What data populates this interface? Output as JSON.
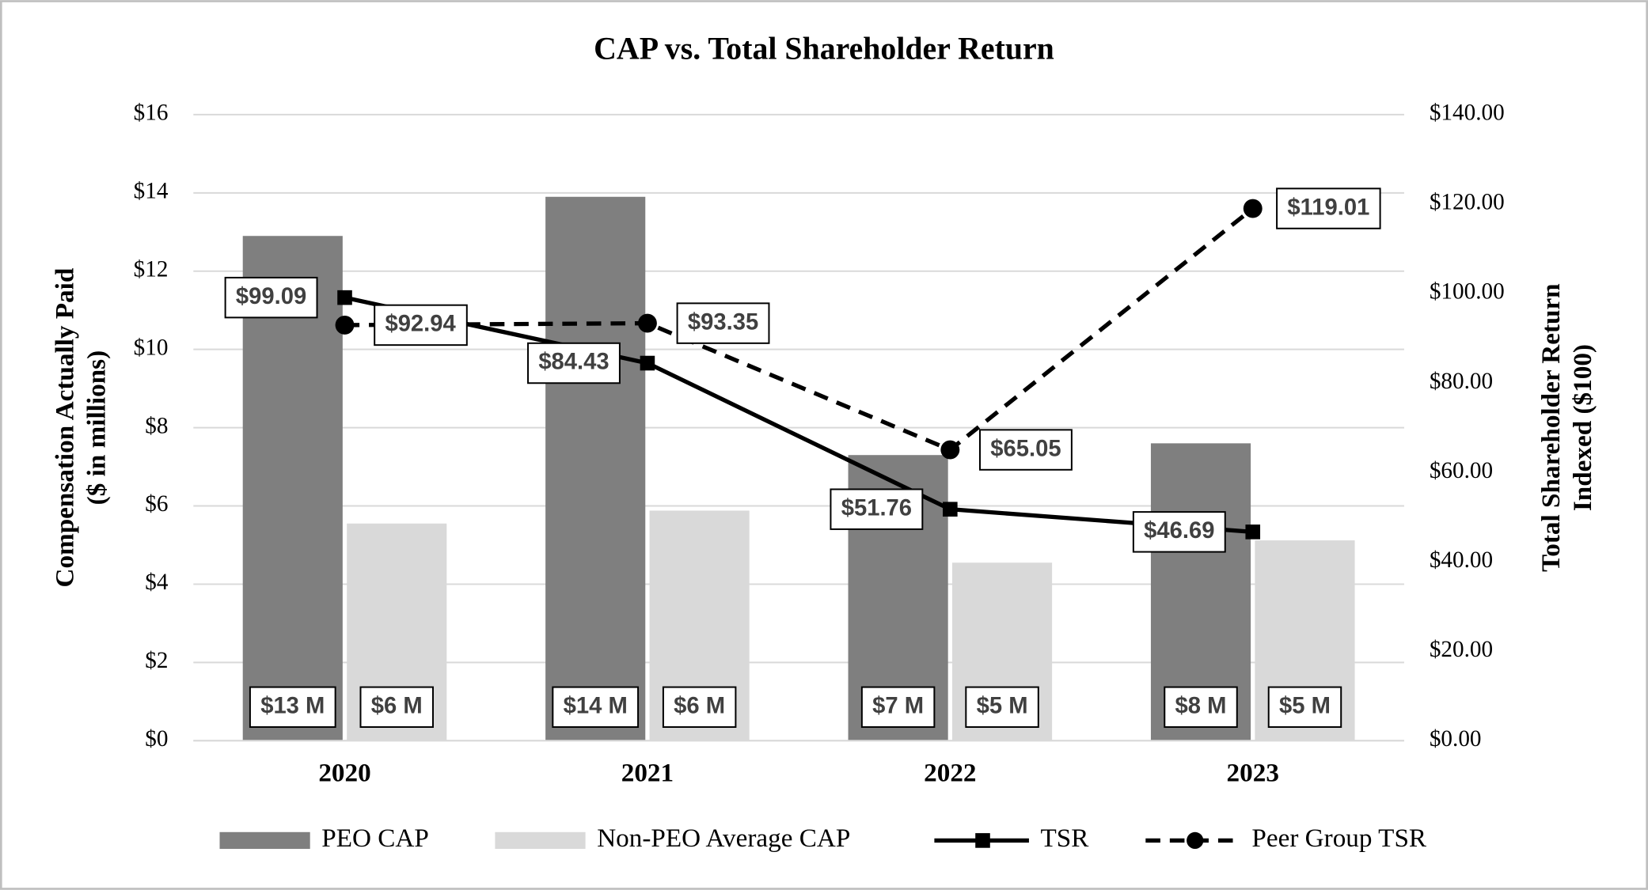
{
  "chart_data": {
    "type": "bar-line",
    "title": "CAP vs. Total Shareholder Return",
    "y_label": [
      "Compensation Actually Paid",
      "($ in millions)"
    ],
    "y2_label": [
      "Total Shareholder Return",
      "Indexed ($100)"
    ],
    "categories": [
      "2020",
      "2021",
      "2022",
      "2023"
    ],
    "ylim": [
      0,
      16
    ],
    "yticks": [
      {
        "value": 0,
        "label": "$0"
      },
      {
        "value": 2,
        "label": "$2"
      },
      {
        "value": 4,
        "label": "$4"
      },
      {
        "value": 6,
        "label": "$6"
      },
      {
        "value": 8,
        "label": "$8"
      },
      {
        "value": 10,
        "label": "$10"
      },
      {
        "value": 12,
        "label": "$12"
      },
      {
        "value": 14,
        "label": "$14"
      },
      {
        "value": 16,
        "label": "$16"
      }
    ],
    "y2lim": [
      0,
      140
    ],
    "y2ticks": [
      {
        "value": 0,
        "label": "$0.00"
      },
      {
        "value": 20,
        "label": "$20.00"
      },
      {
        "value": 40,
        "label": "$40.00"
      },
      {
        "value": 60,
        "label": "$60.00"
      },
      {
        "value": 80,
        "label": "$80.00"
      },
      {
        "value": 100,
        "label": "$100.00"
      },
      {
        "value": 120,
        "label": "$120.00"
      },
      {
        "value": 140,
        "label": "$140.00"
      }
    ],
    "grid": true,
    "series": [
      {
        "name": "PEO CAP",
        "kind": "bar",
        "color": "#7f7f7f",
        "values": [
          12.9,
          13.9,
          7.3,
          7.6
        ],
        "value_labels": [
          "$13 M",
          "$14 M",
          "$7 M",
          "$8 M"
        ]
      },
      {
        "name": "Non-PEO Average CAP",
        "kind": "bar",
        "color": "#d9d9d9",
        "values": [
          5.55,
          5.88,
          4.55,
          5.12
        ],
        "value_labels": [
          "$6 M",
          "$6 M",
          "$5 M",
          "$5 M"
        ]
      },
      {
        "name": "TSR",
        "kind": "line",
        "axis": "y2",
        "color": "#000000",
        "marker": "square",
        "dashed": false,
        "values": [
          99.09,
          84.43,
          51.76,
          46.69
        ],
        "value_labels": [
          "$99.09",
          "$84.43",
          "$51.76",
          "$46.69"
        ]
      },
      {
        "name": "Peer Group TSR",
        "kind": "line",
        "axis": "y2",
        "color": "#000000",
        "marker": "circle",
        "dashed": true,
        "values": [
          92.94,
          93.35,
          65.05,
          119.01
        ],
        "value_labels": [
          "$92.94",
          "$93.35",
          "$65.05",
          "$119.01"
        ]
      }
    ]
  }
}
